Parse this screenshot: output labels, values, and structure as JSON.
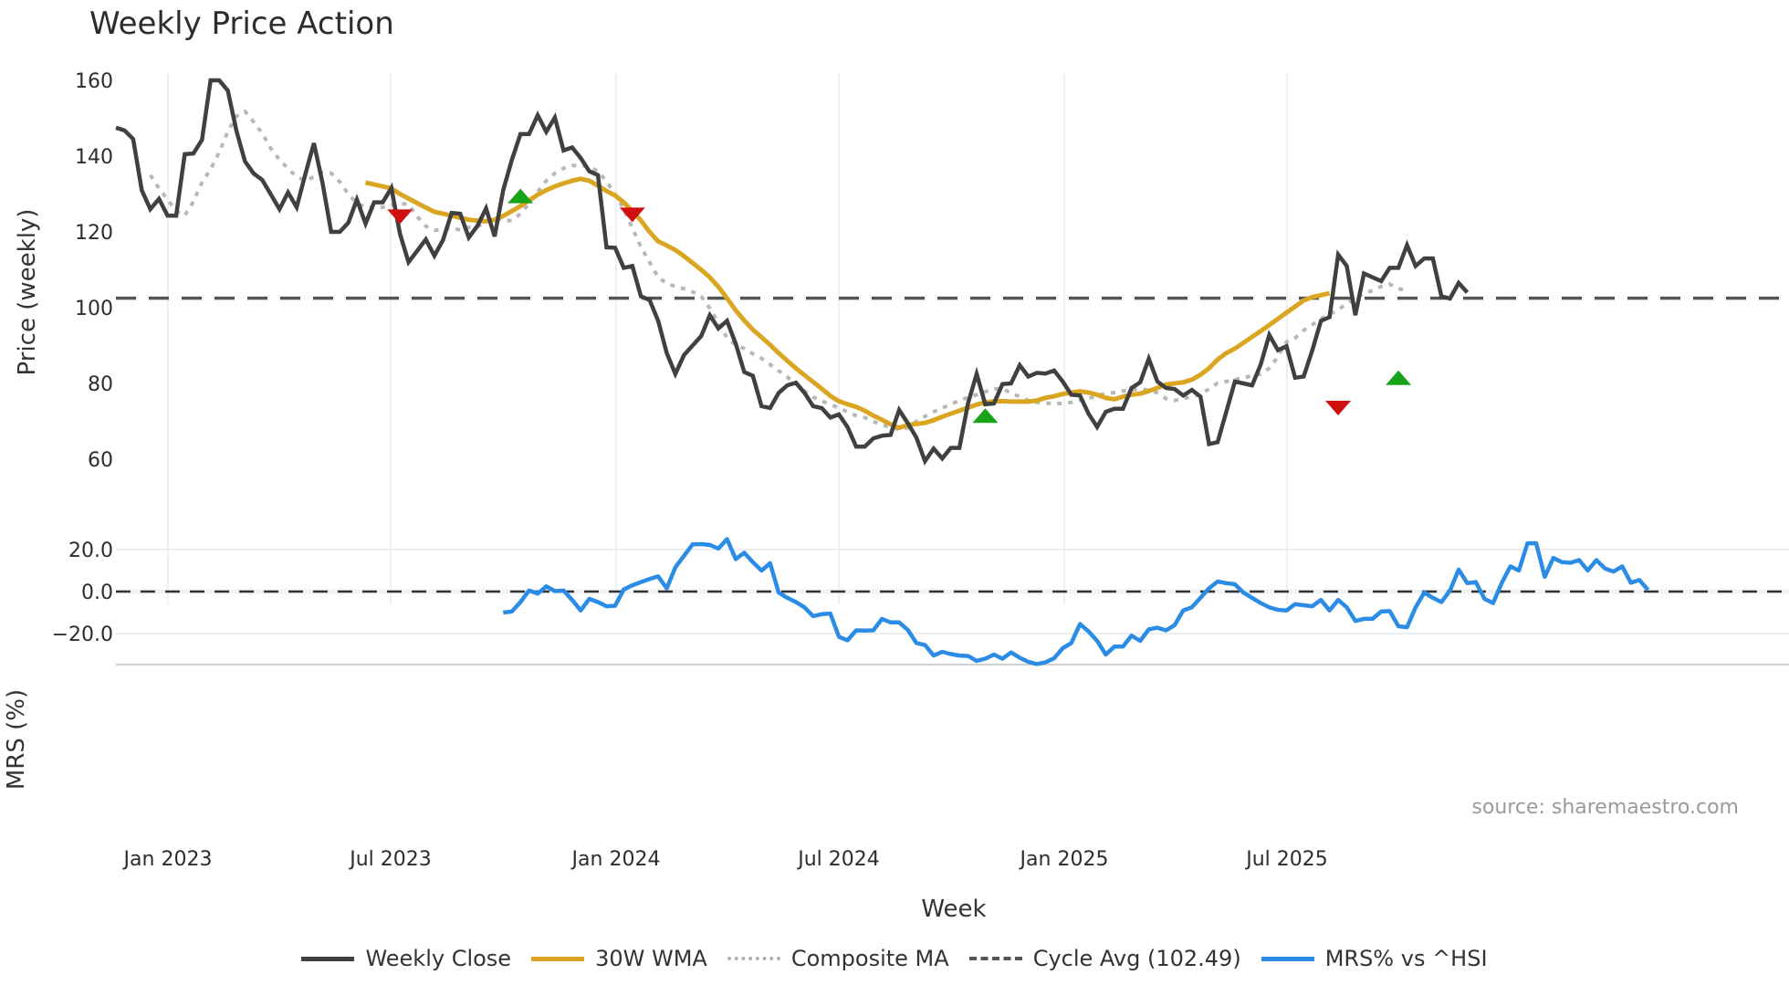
{
  "header": {
    "title": "Weekly Price Action"
  },
  "source_label": "source: sharemaestro.com",
  "legend": [
    {
      "label": "Weekly Close",
      "color": "#404040",
      "style": "solid"
    },
    {
      "label": "30W WMA",
      "color": "#DAA520",
      "style": "solid"
    },
    {
      "label": "Composite MA",
      "color": "#B0B0B0",
      "style": "dotted"
    },
    {
      "label": "Cycle Avg (102.49)",
      "color": "#555555",
      "style": "dashed"
    },
    {
      "label": "MRS% vs ^HSI",
      "color": "#2B8CE6",
      "style": "solid"
    }
  ],
  "chart_data": [
    {
      "type": "line",
      "title": "Weekly Price Action",
      "xlabel": "Week",
      "ylabel": "Price (weekly)",
      "ylim": [
        55,
        165
      ],
      "yticks": [
        60,
        80,
        100,
        120,
        140,
        160
      ],
      "xticks": [
        "Jan 2023",
        "Jul 2023",
        "Jan 2024",
        "Jul 2024",
        "Jan 2025",
        "Jul 2025"
      ],
      "grid": "vertical",
      "first_week_offset": -6,
      "cycle_avg": 102.49,
      "series": [
        {
          "name": "Weekly Close",
          "start": 0,
          "values": [
            147.5,
            146.8,
            144.5,
            131,
            126,
            128.7,
            124.3,
            124.3,
            140.5,
            140.7,
            144.3,
            160,
            160,
            157.3,
            146.7,
            138.6,
            135.4,
            133.7,
            129.9,
            126,
            130.4,
            126.5,
            135.2,
            143.4,
            133,
            120,
            120,
            122.4,
            128.5,
            122.2,
            127.8,
            127.8,
            131.6,
            119.5,
            112,
            115,
            118,
            113.7,
            117.8,
            125,
            124.8,
            118.5,
            121.6,
            126.2,
            118.8,
            131,
            139,
            145.8,
            145.8,
            150.8,
            146.4,
            150.2,
            141.5,
            142.3,
            139.5,
            136,
            135,
            115.9,
            115.8,
            110.5,
            111,
            103,
            102,
            96.5,
            88,
            82.5,
            87.5,
            90,
            92.5,
            98,
            94.5,
            96.5,
            90.5,
            83,
            82,
            74,
            73.5,
            77.5,
            79.5,
            80.2,
            77.5,
            74,
            73.5,
            71,
            71.8,
            68.5,
            63.3,
            63.3,
            65.5,
            66.2,
            66.4,
            73,
            69.5,
            65.7,
            59.5,
            62.8,
            60.2,
            63,
            63,
            74.8,
            82.5,
            74.5,
            74.7,
            79.8,
            80,
            84.8,
            81.8,
            82.8,
            82.6,
            83.4,
            80.5,
            77,
            76.8,
            72,
            68.5,
            72.5,
            73.3,
            73.3,
            78.8,
            80.3,
            86.5,
            80.5,
            78.8,
            78.5,
            76.8,
            78.3,
            76.5,
            64,
            64.5,
            72.5,
            80.5,
            80,
            79.5,
            85,
            92.8,
            88.8,
            89.8,
            81.5,
            81.8,
            88.8,
            96.5,
            97.5,
            114,
            111,
            98,
            109,
            108,
            107,
            110.5,
            110.5,
            116.5,
            111,
            113,
            113,
            103,
            102.4,
            106.5,
            104
          ]
        },
        {
          "name": "30W WMA",
          "start": 29,
          "values": [
            133,
            132.5,
            132,
            131.5,
            130,
            128.8,
            127.6,
            126.4,
            125.3,
            124.8,
            124.3,
            123.7,
            123.2,
            123,
            122.8,
            123.2,
            124.2,
            125.5,
            126.8,
            128.3,
            129.8,
            131,
            132,
            132.8,
            133.5,
            134,
            133.5,
            132.2,
            130.8,
            129.6,
            127.8,
            125.5,
            123,
            120,
            117.5,
            116.4,
            115.2,
            113.6,
            111.8,
            110,
            108,
            105.5,
            102.5,
            99.3,
            96.6,
            94.2,
            92.2,
            90.2,
            88,
            86,
            84,
            82.2,
            80.4,
            78.6,
            76.7,
            75.3,
            74.5,
            73.8,
            72.8,
            71.5,
            70.4,
            69.2,
            68.3,
            69,
            69.3,
            69.6,
            70.3,
            71.2,
            72,
            72.8,
            73.6,
            74.4,
            75,
            75.3,
            75.3,
            75.2,
            75.2,
            75.2,
            75.5,
            76.2,
            76.6,
            77.2,
            77.6,
            77.9,
            77.6,
            77,
            76.2,
            75.8,
            76.5,
            77,
            77.3,
            78,
            78.8,
            79.7,
            80,
            80.3,
            81,
            82.3,
            84,
            86.3,
            88,
            89.2,
            90.7,
            92.3,
            93.8,
            95.4,
            97,
            98.7,
            100.3,
            101.9,
            102.8,
            103.3,
            103.8
          ]
        },
        {
          "name": "Composite MA",
          "start": 4,
          "values": [
            135,
            131.5,
            128.5,
            125.5,
            124.3,
            128,
            133,
            136.5,
            141,
            146.5,
            150.5,
            151.8,
            149,
            146,
            142,
            139,
            136.7,
            134.5,
            133.5,
            134.5,
            135.7,
            135.5,
            133.2,
            130,
            127.5,
            126.5,
            126.5,
            126.5,
            127,
            127.5,
            127.3,
            124,
            121.5,
            120.4,
            120.6,
            121,
            120.5,
            121.2,
            121.4,
            122.6,
            123.8,
            123,
            123,
            124.8,
            127.5,
            130.6,
            133.5,
            135.5,
            136.8,
            137.5,
            137.6,
            137.2,
            136,
            133.3,
            130,
            126,
            121,
            116,
            112,
            108,
            106.4,
            105.6,
            105,
            104.2,
            103,
            99.8,
            96,
            92,
            90.2,
            89.2,
            87.8,
            86.6,
            85,
            83.3,
            81.7,
            79.8,
            78,
            76.4,
            75.3,
            74.5,
            73.5,
            72.5,
            71.5,
            71,
            70,
            69,
            68.5,
            67.8,
            68.3,
            70,
            71.3,
            72.5,
            73.5,
            74.5,
            75.5,
            76.3,
            77,
            77.8,
            78.5,
            78.6,
            77.5,
            76.5,
            75.5,
            75,
            74.8,
            74.7,
            74.7,
            75,
            75.5,
            76,
            76.8,
            77.3,
            77.6,
            78,
            78.3,
            78.6,
            78.2,
            77.5,
            76,
            75.5,
            76,
            76.5,
            77.2,
            78.5,
            80.1,
            80.5,
            81,
            81.5,
            82,
            82.5,
            84,
            87,
            91,
            92,
            94,
            95.5,
            97,
            98.3,
            99.5,
            101,
            102.5,
            103.8,
            104.5,
            105.6,
            106.2,
            105,
            104.5
          ]
        }
      ],
      "markers": [
        {
          "type": "sell",
          "week": 33,
          "value": 124,
          "color": "#D0100F"
        },
        {
          "type": "buy",
          "week": 47,
          "value": 129.5,
          "color": "#19A319"
        },
        {
          "type": "sell",
          "week": 60,
          "value": 124.5,
          "color": "#D0100F"
        },
        {
          "type": "buy",
          "week": 101,
          "value": 71.5,
          "color": "#19A319"
        },
        {
          "type": "sell",
          "week": 142,
          "value": 73.5,
          "color": "#D0100F"
        },
        {
          "type": "buy",
          "week": 149,
          "value": 81.5,
          "color": "#19A319"
        }
      ]
    },
    {
      "type": "line",
      "title": "",
      "xlabel": "Week",
      "ylabel": "MRS (%)",
      "ylim": [
        -33,
        29
      ],
      "yticks": [
        "20.0",
        "0.0",
        "−20.0"
      ],
      "ytick_values": [
        20,
        0,
        -20
      ],
      "grid": "horizontal",
      "zero_line": 0,
      "series": [
        {
          "name": "MRS% vs ^HSI",
          "start": 25,
          "values": [
            -10,
            -9.5,
            -5,
            0.5,
            -1,
            2.5,
            0.2,
            0.5,
            -4,
            -9,
            -3.5,
            -5,
            -7,
            -6.8,
            1,
            3,
            4.5,
            6,
            7.2,
            1.5,
            11.5,
            17,
            22.5,
            22.6,
            22.2,
            20.5,
            25,
            15.5,
            18.5,
            14,
            10,
            13.5,
            -0.5,
            -3,
            -5,
            -7.5,
            -11.7,
            -10.8,
            -10.5,
            -21.5,
            -23.2,
            -18.5,
            -18.6,
            -18.5,
            -13,
            -14.7,
            -14.7,
            -18.3,
            -24.5,
            -25.5,
            -30.5,
            -28.7,
            -29.8,
            -30.5,
            -30.7,
            -33,
            -32,
            -30,
            -32,
            -29,
            -31.5,
            -33.5,
            -34.5,
            -33.7,
            -31.8,
            -27,
            -24.5,
            -15.5,
            -19,
            -23.5,
            -30,
            -26.2,
            -26.2,
            -21,
            -23.5,
            -18,
            -17.2,
            -18.5,
            -16,
            -9,
            -7.5,
            -3,
            1.5,
            4.8,
            4,
            3.5,
            -0.5,
            -3,
            -5.5,
            -7.5,
            -8.7,
            -9,
            -6,
            -6.5,
            -7,
            -4,
            -9,
            -4,
            -7.5,
            -14,
            -13,
            -13,
            -9.5,
            -9.3,
            -16.5,
            -17,
            -7.5,
            -0.5,
            -3,
            -5,
            0.5,
            10.5,
            4,
            4.5,
            -3.5,
            -5.5,
            4,
            12,
            10,
            23,
            23,
            7,
            16,
            14,
            13.7,
            15,
            10,
            15,
            11,
            9.5,
            12,
            4.2,
            5.5,
            0.8
          ]
        }
      ]
    }
  ]
}
